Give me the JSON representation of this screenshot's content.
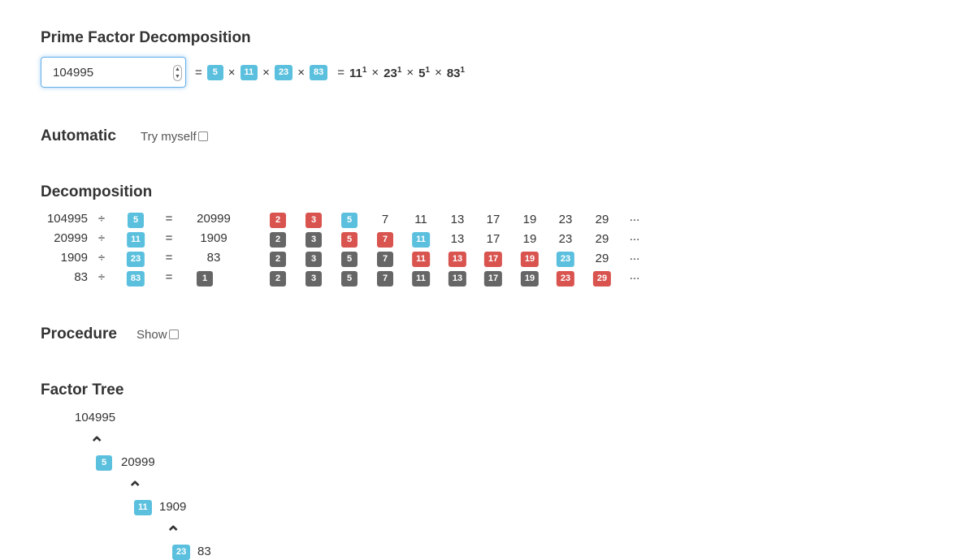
{
  "title": "Prime Factor Decomposition",
  "input": {
    "value": "104995"
  },
  "factors": [
    "5",
    "11",
    "23",
    "83"
  ],
  "times": "×",
  "equals": "=",
  "powers": [
    {
      "base": "11",
      "exp": "1"
    },
    {
      "base": "23",
      "exp": "1"
    },
    {
      "base": "5",
      "exp": "1"
    },
    {
      "base": "83",
      "exp": "1"
    }
  ],
  "automatic": {
    "heading": "Automatic",
    "try_label": "Try myself"
  },
  "decomposition": {
    "heading": "Decomposition",
    "div": "÷",
    "ellipsis": "...",
    "primes": [
      "2",
      "3",
      "5",
      "7",
      "11",
      "13",
      "17",
      "19",
      "23",
      "29"
    ],
    "rows": [
      {
        "n": "104995",
        "d": "5",
        "r": "20999",
        "r_badge": false,
        "states": [
          "red",
          "red",
          "blue",
          "plain",
          "plain",
          "plain",
          "plain",
          "plain",
          "plain",
          "plain"
        ]
      },
      {
        "n": "20999",
        "d": "11",
        "r": "1909",
        "r_badge": false,
        "states": [
          "gray",
          "gray",
          "red",
          "red",
          "blue",
          "plain",
          "plain",
          "plain",
          "plain",
          "plain"
        ]
      },
      {
        "n": "1909",
        "d": "23",
        "r": "83",
        "r_badge": false,
        "states": [
          "gray",
          "gray",
          "gray",
          "gray",
          "red",
          "red",
          "red",
          "red",
          "blue",
          "plain"
        ]
      },
      {
        "n": "83",
        "d": "83",
        "r": "1",
        "r_badge": true,
        "states": [
          "gray",
          "gray",
          "gray",
          "gray",
          "gray",
          "gray",
          "gray",
          "gray",
          "red",
          "red"
        ]
      }
    ]
  },
  "procedure": {
    "heading": "Procedure",
    "show_label": "Show"
  },
  "tree": {
    "heading": "Factor Tree",
    "nodes": [
      {
        "factor": "",
        "value": "104995"
      },
      {
        "factor": "5",
        "value": "20999"
      },
      {
        "factor": "11",
        "value": "1909"
      },
      {
        "factor": "23",
        "value": "83"
      }
    ]
  },
  "colors": {
    "factor": "#5bc0de",
    "tested": "#d9534f",
    "skipped": "#666666"
  }
}
